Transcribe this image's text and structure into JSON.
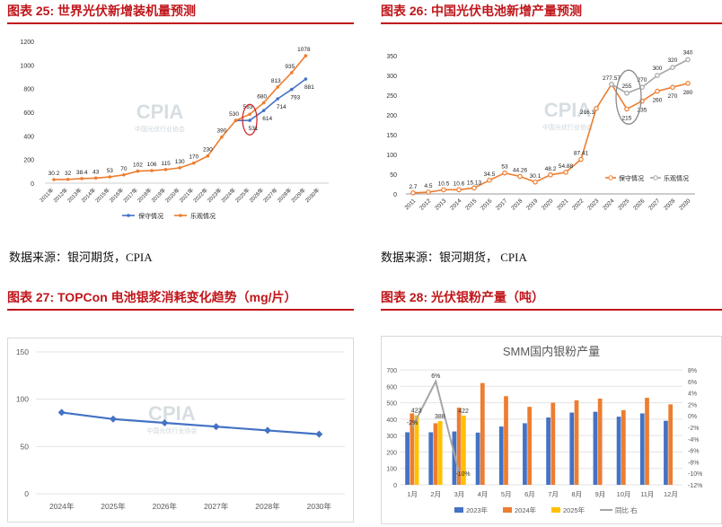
{
  "panels": {
    "fig25": {
      "header": "图表 25:  世界光伏新增装机量预测",
      "source": "数据来源：银河期货，CPIA",
      "watermark": "CPIA",
      "watermark_sub": "中国光伏行业协会"
    },
    "fig26": {
      "header": "图表 26:  中国光伏电池新增产量预测",
      "source": "数据来源：银河期货，  CPIA",
      "watermark": "CPIA",
      "watermark_sub": "中国光伏行业协会"
    },
    "fig27": {
      "header": "图表 27:  TOPCon 电池银浆消耗变化趋势（mg/片）",
      "watermark": "CPIA",
      "watermark_sub": "中国光伏行业协会"
    },
    "fig28": {
      "header": "图表 28:  光伏银粉产量（吨）"
    }
  },
  "colors": {
    "header_red": "#c0161b",
    "orange": "#ed7d31",
    "blue": "#4472c4",
    "gray": "#a5a5a5",
    "yellow": "#ffc000",
    "line27": "#4472c4"
  },
  "chart_data": [
    {
      "id": "fig25",
      "type": "line",
      "title": "",
      "categories": [
        "2011年",
        "2012年",
        "2013年",
        "2014年",
        "2015年",
        "2016年",
        "2017年",
        "2018年",
        "2019年",
        "2020年",
        "2021年",
        "2022年",
        "2023年",
        "2024年",
        "2025年",
        "2026年",
        "2027年",
        "2028年",
        "2029年",
        "2030年"
      ],
      "ylim": [
        0,
        1200
      ],
      "yticks": [
        0,
        200,
        400,
        600,
        800,
        1000,
        1200
      ],
      "series": [
        {
          "name": "保守情况",
          "values": [
            null,
            null,
            null,
            null,
            null,
            null,
            null,
            null,
            null,
            null,
            null,
            null,
            null,
            530,
            531,
            614,
            714,
            793,
            881,
            null
          ],
          "labels": [
            "",
            "",
            "",
            "",
            "",
            "",
            "",
            "",
            "",
            "",
            "",
            "",
            "",
            "",
            "531",
            "614",
            "714",
            "793",
            "881",
            ""
          ]
        },
        {
          "name": "乐观情况",
          "values": [
            30.2,
            32,
            38.4,
            43,
            53,
            70,
            102,
            106,
            115,
            130,
            170,
            230,
            390,
            530,
            583,
            680,
            813,
            935,
            1078,
            null
          ],
          "labels": [
            "30.2",
            "32",
            "38.4",
            "43",
            "53",
            "70",
            "102",
            "106",
            "115",
            "130",
            "170",
            "230",
            "390",
            "530",
            "583",
            "680",
            "813",
            "935",
            "1078",
            ""
          ]
        }
      ],
      "legend": "bottom",
      "grid": false
    },
    {
      "id": "fig26",
      "type": "line",
      "title": "",
      "categories": [
        "2011",
        "2012",
        "2013",
        "2014",
        "2015",
        "2016",
        "2017",
        "2018",
        "2019",
        "2020",
        "2021",
        "2022",
        "2023",
        "2024",
        "2025",
        "2026",
        "2027",
        "2028",
        "2030"
      ],
      "ylim": [
        0,
        350
      ],
      "yticks": [
        0,
        50,
        100,
        150,
        200,
        250,
        300,
        350
      ],
      "series": [
        {
          "name": "保守情况",
          "values": [
            2.7,
            4.5,
            10.5,
            10.6,
            15.13,
            34.5,
            53,
            44.26,
            30.1,
            48.2,
            54.88,
            87.41,
            216.3,
            277.57,
            215,
            235,
            260,
            270,
            280
          ]
        },
        {
          "name": "乐观情况",
          "values": [
            null,
            null,
            null,
            null,
            null,
            null,
            null,
            null,
            null,
            null,
            null,
            null,
            null,
            277.57,
            255,
            270,
            300,
            320,
            340
          ]
        }
      ],
      "labels": [
        {
          "text": "2.7",
          "series": 0,
          "i": 0
        },
        {
          "text": "4.5",
          "series": 0,
          "i": 1
        },
        {
          "text": "10.5",
          "series": 0,
          "i": 2
        },
        {
          "text": "10.6",
          "series": 0,
          "i": 3
        },
        {
          "text": "15.13",
          "series": 0,
          "i": 4
        },
        {
          "text": "34.5",
          "series": 0,
          "i": 5
        },
        {
          "text": "53",
          "series": 0,
          "i": 6
        },
        {
          "text": "44.26",
          "series": 0,
          "i": 7
        },
        {
          "text": "30.1",
          "series": 0,
          "i": 8
        },
        {
          "text": "48.2",
          "series": 0,
          "i": 9
        },
        {
          "text": "54.88",
          "series": 0,
          "i": 10
        },
        {
          "text": "87.41",
          "series": 0,
          "i": 11
        },
        {
          "text": "216.3",
          "series": 0,
          "i": 12
        },
        {
          "text": "277.57",
          "series": 0,
          "i": 13
        },
        {
          "text": "215",
          "series": 0,
          "i": 14
        },
        {
          "text": "235",
          "series": 0,
          "i": 15
        },
        {
          "text": "260",
          "series": 0,
          "i": 16
        },
        {
          "text": "270",
          "series": 0,
          "i": 17
        },
        {
          "text": "280",
          "series": 0,
          "i": 18
        },
        {
          "text": "255",
          "series": 1,
          "i": 14
        },
        {
          "text": "270",
          "series": 1,
          "i": 15
        },
        {
          "text": "300",
          "series": 1,
          "i": 16
        },
        {
          "text": "320",
          "series": 1,
          "i": 17
        },
        {
          "text": "340",
          "series": 1,
          "i": 18
        }
      ],
      "legend": "bottom-right",
      "grid": false
    },
    {
      "id": "fig27",
      "type": "line",
      "title": "",
      "categories": [
        "2024年",
        "2025年",
        "2026年",
        "2027年",
        "2028年",
        "2030年"
      ],
      "ylim": [
        0,
        150
      ],
      "yticks": [
        0,
        50,
        100,
        150
      ],
      "series": [
        {
          "name": "",
          "values": [
            86,
            79,
            75,
            71,
            67,
            63
          ]
        }
      ],
      "grid": true
    },
    {
      "id": "fig28",
      "type": "bar",
      "title": "SMM国内银粉产量",
      "categories": [
        "1月",
        "2月",
        "3月",
        "4月",
        "5月",
        "6月",
        "7月",
        "8月",
        "9月",
        "10月",
        "11月",
        "12月"
      ],
      "ylim": [
        0,
        700
      ],
      "yticks": [
        0,
        100,
        200,
        300,
        400,
        500,
        600,
        700
      ],
      "y2lim": [
        -12,
        8
      ],
      "y2ticks": [
        "8%",
        "6%",
        "4%",
        "2%",
        "0%",
        "-2%",
        "-4%",
        "-6%",
        "-8%",
        "-10%",
        "-12%"
      ],
      "series": [
        {
          "name": "2023年",
          "values": [
            320,
            320,
            325,
            318,
            355,
            375,
            410,
            440,
            445,
            415,
            435,
            390
          ]
        },
        {
          "name": "2024年",
          "values": [
            435,
            375,
            470,
            620,
            540,
            475,
            500,
            515,
            525,
            455,
            530,
            490
          ]
        },
        {
          "name": "2025年",
          "values": [
            423,
            388,
            422,
            null,
            null,
            null,
            null,
            null,
            null,
            null,
            null,
            null
          ]
        },
        {
          "name": "同比 右",
          "axis": "right",
          "values": [
            -2,
            6,
            -10,
            null,
            null,
            null,
            null,
            null,
            null,
            null,
            null,
            null
          ]
        }
      ],
      "data_labels": [
        {
          "text": "423",
          "series": 2,
          "i": 0
        },
        {
          "text": "388",
          "series": 2,
          "i": 1
        },
        {
          "text": "422",
          "series": 2,
          "i": 2
        },
        {
          "text": "-2%",
          "series": 3,
          "i": 0
        },
        {
          "text": "6%",
          "series": 3,
          "i": 1
        },
        {
          "text": "-10%",
          "series": 3,
          "i": 2
        }
      ],
      "legend": "bottom",
      "grid": true
    }
  ]
}
